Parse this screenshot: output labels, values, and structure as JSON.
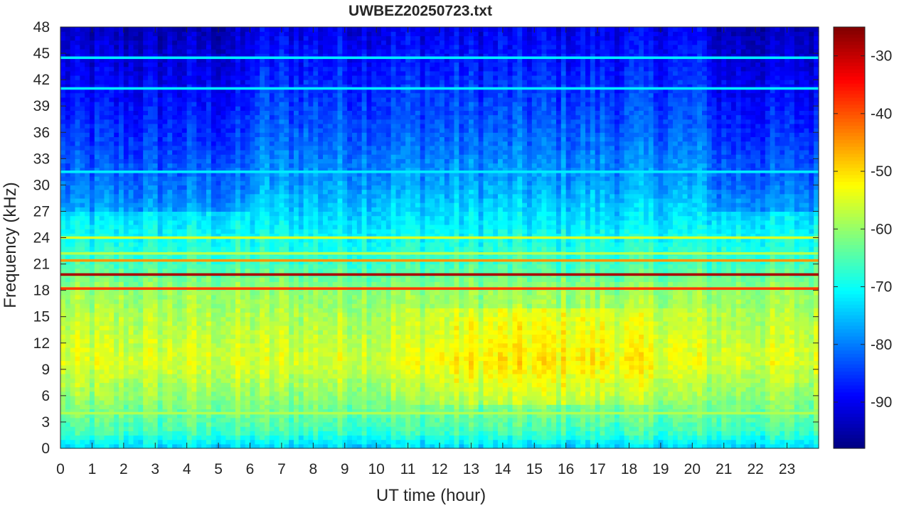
{
  "chart_data": {
    "type": "heatmap",
    "title": "UWBEZ20250723.txt",
    "xlabel": "UT time (hour)",
    "ylabel": "Frequency (kHz)",
    "xlim": [
      0,
      24
    ],
    "ylim": [
      0,
      48
    ],
    "x_ticks": [
      "0",
      "1",
      "2",
      "3",
      "4",
      "5",
      "6",
      "7",
      "8",
      "9",
      "10",
      "11",
      "12",
      "13",
      "14",
      "15",
      "16",
      "17",
      "18",
      "19",
      "20",
      "21",
      "22",
      "23"
    ],
    "y_ticks": [
      "0",
      "3",
      "6",
      "9",
      "12",
      "15",
      "18",
      "21",
      "24",
      "27",
      "30",
      "33",
      "36",
      "39",
      "42",
      "45",
      "48"
    ],
    "colorbar": {
      "colormap": "jet",
      "range": [
        -98,
        -25
      ],
      "ticks": [
        "-30",
        "-40",
        "-50",
        "-60",
        "-70",
        "-80",
        "-90"
      ]
    },
    "background_level_profile": [
      {
        "freq_khz": 0,
        "level_db": -74
      },
      {
        "freq_khz": 2,
        "level_db": -66
      },
      {
        "freq_khz": 6,
        "level_db": -60
      },
      {
        "freq_khz": 10,
        "level_db": -55
      },
      {
        "freq_khz": 15,
        "level_db": -58
      },
      {
        "freq_khz": 18,
        "level_db": -60
      },
      {
        "freq_khz": 21,
        "level_db": -66
      },
      {
        "freq_khz": 24,
        "level_db": -70
      },
      {
        "freq_khz": 30,
        "level_db": -77
      },
      {
        "freq_khz": 36,
        "level_db": -82
      },
      {
        "freq_khz": 42,
        "level_db": -86
      },
      {
        "freq_khz": 48,
        "level_db": -90
      }
    ],
    "narrowband_lines": [
      {
        "freq_khz": 19.8,
        "level_db": -28
      },
      {
        "freq_khz": 18.2,
        "level_db": -38
      },
      {
        "freq_khz": 21.4,
        "level_db": -45
      },
      {
        "freq_khz": 24.0,
        "level_db": -55
      },
      {
        "freq_khz": 22.2,
        "level_db": -58
      },
      {
        "freq_khz": 4.0,
        "level_db": -58
      },
      {
        "freq_khz": 44.5,
        "level_db": -72
      },
      {
        "freq_khz": 41.0,
        "level_db": -72
      },
      {
        "freq_khz": 31.5,
        "level_db": -72
      }
    ]
  }
}
